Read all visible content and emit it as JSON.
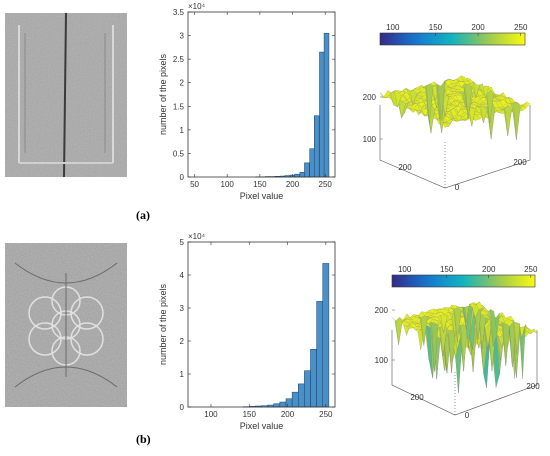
{
  "figure": {
    "panel_labels": [
      "(a)",
      "(b)"
    ]
  },
  "chart_data": [
    {
      "type": "bar",
      "panel": "(a)",
      "title": "",
      "xlabel": "Pixel value",
      "ylabel": "number of the pixels",
      "exponent_label": "×10⁴",
      "xlim": [
        40,
        265
      ],
      "ylim": [
        0,
        3.5
      ],
      "xticks": [
        50,
        100,
        150,
        200,
        250
      ],
      "yticks": [
        0,
        0.5,
        1,
        1.5,
        2,
        2.5,
        3,
        3.5
      ],
      "bin_width": 7.5,
      "bin_centers": [
        147,
        155,
        162,
        170,
        177,
        185,
        192,
        200,
        207,
        215,
        222,
        230,
        237,
        245,
        252
      ],
      "values": [
        0.005,
        0.005,
        0.01,
        0.01,
        0.015,
        0.02,
        0.03,
        0.04,
        0.06,
        0.1,
        0.3,
        0.6,
        1.3,
        2.65,
        3.05
      ],
      "bar_color": "#4a90c8"
    },
    {
      "type": "bar",
      "panel": "(b)",
      "title": "",
      "xlabel": "Pixel value",
      "ylabel": "number of the pixels",
      "exponent_label": "×10⁴",
      "xlim": [
        70,
        262
      ],
      "ylim": [
        0,
        5
      ],
      "xticks": [
        100,
        150,
        200,
        250
      ],
      "yticks": [
        0,
        1,
        2,
        3,
        4,
        5
      ],
      "bin_width": 8,
      "bin_centers": [
        146,
        154,
        162,
        170,
        178,
        186,
        194,
        202,
        210,
        218,
        226,
        234,
        242,
        250
      ],
      "values": [
        0.01,
        0.02,
        0.03,
        0.04,
        0.06,
        0.1,
        0.15,
        0.25,
        0.45,
        0.7,
        1.1,
        1.75,
        3.2,
        4.35
      ],
      "bar_color": "#4a90c8"
    },
    {
      "type": "heatmap",
      "panel": "(a) surface",
      "colorbar_ticks": [
        100,
        150,
        200,
        250
      ],
      "colorbar_range": [
        85,
        255
      ],
      "z_ticks": [
        100,
        200
      ],
      "x_ticks": [
        0,
        200
      ],
      "y_ticks": [
        200
      ]
    },
    {
      "type": "heatmap",
      "panel": "(b) surface",
      "colorbar_ticks": [
        100,
        150,
        200,
        250
      ],
      "colorbar_range": [
        85,
        255
      ],
      "z_ticks": [
        100,
        200
      ],
      "x_ticks": [
        0,
        200
      ],
      "y_ticks": [
        200
      ]
    }
  ]
}
